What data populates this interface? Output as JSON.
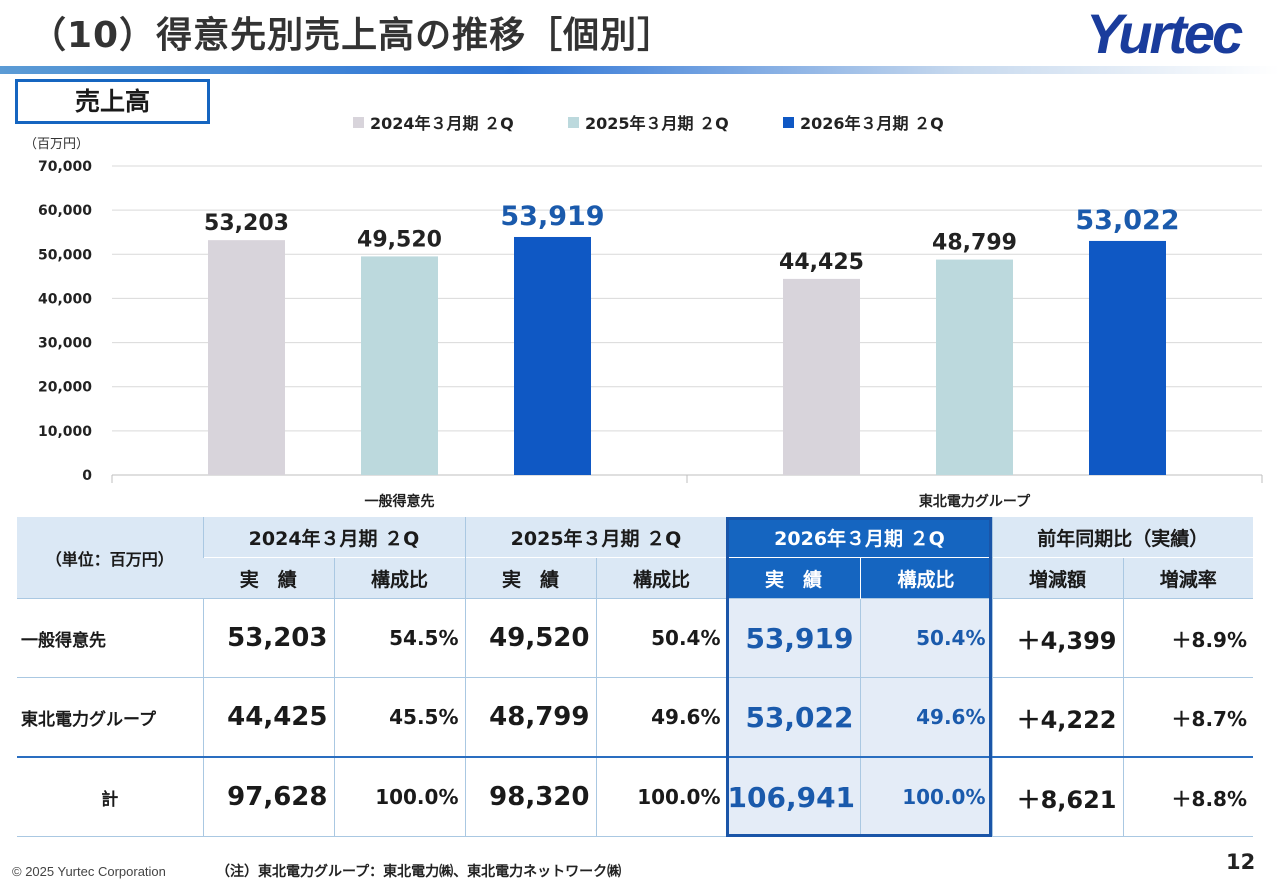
{
  "slide": {
    "title": "（10）得意先別売上高の推移［個別］",
    "logo": "Yurtec",
    "section": "売上高",
    "copyright": "© 2025 Yurtec Corporation",
    "note": "（注）東北電力グループ：東北電力㈱、東北電力ネットワーク㈱",
    "page_number": "12"
  },
  "chart_data": {
    "type": "bar",
    "unit_label": "（百万円）",
    "categories": [
      "一般得意先",
      "東北電力グループ"
    ],
    "series": [
      {
        "name": "2024年３月期 ２Q",
        "color": "#d8d4db",
        "values": [
          53203,
          44425
        ],
        "labels": [
          "53,203",
          "44,425"
        ]
      },
      {
        "name": "2025年３月期 ２Q",
        "color": "#bcd9dd",
        "values": [
          49520,
          48799
        ],
        "labels": [
          "49,520",
          "48,799"
        ]
      },
      {
        "name": "2026年３月期 ２Q",
        "color": "#0f58c4",
        "values": [
          53919,
          53022
        ],
        "labels": [
          "53,919",
          "53,022"
        ],
        "highlight": true,
        "label_color": "#1a5aac"
      }
    ],
    "ylim": [
      0,
      70000
    ],
    "yticks": [
      0,
      10000,
      20000,
      30000,
      40000,
      50000,
      60000,
      70000
    ],
    "ytick_labels": [
      "0",
      "10,000",
      "20,000",
      "30,000",
      "40,000",
      "50,000",
      "60,000",
      "70,000"
    ],
    "grid": true,
    "legend": "top"
  },
  "table": {
    "unit": "（単位：百万円）",
    "periods": [
      "2024年３月期 ２Q",
      "2025年３月期 ２Q",
      "2026年３月期 ２Q"
    ],
    "yoy": "前年同期比（実績）",
    "sub_actual": "実　績",
    "sub_ratio": "構成比",
    "sub_change": "増減額",
    "sub_rate": "増減率",
    "rows": [
      {
        "label": "一般得意先",
        "v2024": "53,203",
        "r2024": "54.5%",
        "v2025": "49,520",
        "r2025": "50.4%",
        "v2026": "53,919",
        "r2026": "50.4%",
        "change": "＋4,399",
        "rate": "＋8.9%"
      },
      {
        "label": "東北電力グループ",
        "v2024": "44,425",
        "r2024": "45.5%",
        "v2025": "48,799",
        "r2025": "49.6%",
        "v2026": "53,022",
        "r2026": "49.6%",
        "change": "＋4,222",
        "rate": "＋8.7%"
      },
      {
        "label": "計",
        "v2024": "97,628",
        "r2024": "100.0%",
        "v2025": "98,320",
        "r2025": "100.0%",
        "v2026": "106,941",
        "r2026": "100.0%",
        "change": "＋8,621",
        "rate": "＋8.8%"
      }
    ]
  }
}
